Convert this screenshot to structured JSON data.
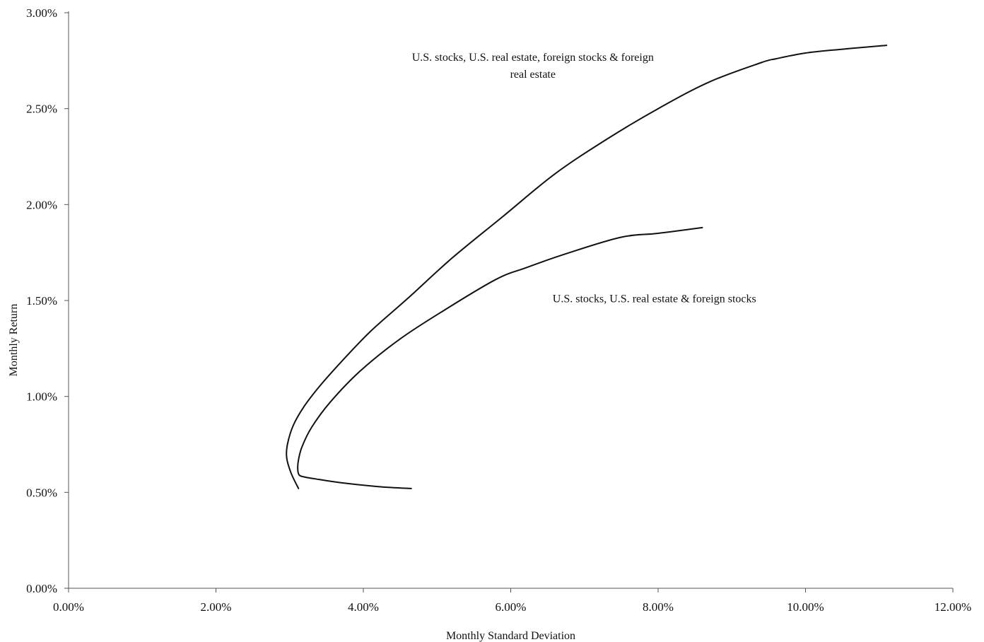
{
  "chart_data": {
    "type": "line",
    "title": "",
    "xlabel": "Monthly Standard Deviation",
    "ylabel": "Monthly Return",
    "xlim": [
      0,
      12
    ],
    "ylim": [
      0,
      3
    ],
    "x_ticks": [
      "0.00%",
      "2.00%",
      "4.00%",
      "6.00%",
      "8.00%",
      "10.00%",
      "12.00%"
    ],
    "y_ticks": [
      "0.00%",
      "0.50%",
      "1.00%",
      "1.50%",
      "2.00%",
      "2.50%",
      "3.00%"
    ],
    "grid": false,
    "legend": "none",
    "line_color": "#111111",
    "series": [
      {
        "x": [
          3.12,
          3.02,
          2.96,
          2.97,
          3.05,
          3.2,
          3.4,
          3.7,
          4.1,
          4.6,
          5.2,
          5.9,
          6.6,
          7.3,
          8.0,
          8.7,
          9.4,
          9.6,
          10.0,
          10.5,
          11.1
        ],
        "y": [
          0.52,
          0.6,
          0.68,
          0.75,
          0.85,
          0.95,
          1.05,
          1.18,
          1.34,
          1.51,
          1.72,
          1.94,
          2.16,
          2.34,
          2.5,
          2.64,
          2.74,
          2.76,
          2.79,
          2.81,
          2.83
        ]
      },
      {
        "x": [
          4.65,
          4.2,
          3.7,
          3.35,
          3.2,
          3.13,
          3.11,
          3.12,
          3.17,
          3.3,
          3.55,
          3.95,
          4.5,
          5.1,
          5.8,
          6.2,
          6.8,
          7.5,
          8.0,
          8.6
        ],
        "y": [
          0.52,
          0.53,
          0.55,
          0.57,
          0.58,
          0.59,
          0.62,
          0.67,
          0.74,
          0.84,
          0.97,
          1.13,
          1.3,
          1.45,
          1.61,
          1.67,
          1.75,
          1.83,
          1.85,
          1.88
        ]
      }
    ],
    "annotations": [
      {
        "lines": [
          "U.S. stocks, U.S. real estate, foreign stocks & foreign",
          "real estate"
        ],
        "x": 6.3,
        "y": 2.75
      },
      {
        "lines": [
          "U.S. stocks, U.S. real estate & foreign stocks"
        ],
        "x": 7.95,
        "y": 1.49
      }
    ]
  }
}
